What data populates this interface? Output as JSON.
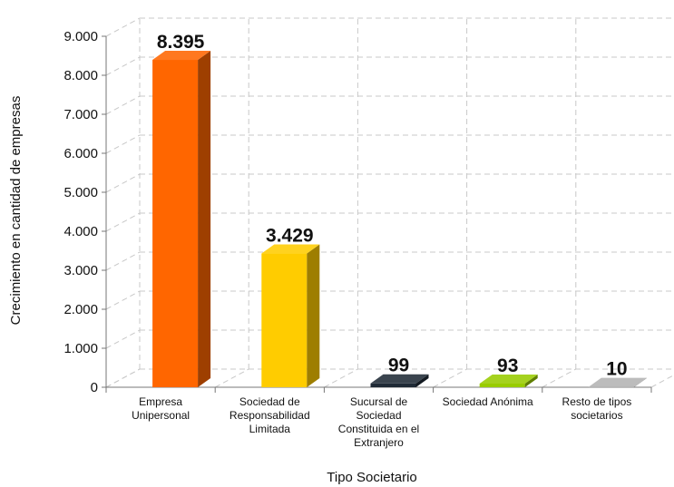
{
  "chart_data": {
    "type": "bar",
    "style": "3d",
    "categories": [
      [
        "Empresa",
        "Unipersonal"
      ],
      [
        "Sociedad de",
        "Responsabilidad",
        "Limitada"
      ],
      [
        "Sucursal de",
        "Sociedad",
        "Constituida en el",
        "Extranjero"
      ],
      [
        "Sociedad Anónima"
      ],
      [
        "Resto de tipos",
        "societarios"
      ]
    ],
    "values": [
      8395,
      3429,
      99,
      93,
      10
    ],
    "value_labels": [
      "8.395",
      "3.429",
      "99",
      "93",
      "10"
    ],
    "colors": [
      "#ff6600",
      "#ffcc00",
      "#1f2a36",
      "#99cc00",
      "#b3b3b3"
    ],
    "xlabel": "Tipo Societario",
    "ylabel": "Crecimiento en cantidad de empresas",
    "ylim": [
      0,
      9000
    ],
    "yticks": [
      "0",
      "1.000",
      "2.000",
      "3.000",
      "4.000",
      "5.000",
      "6.000",
      "7.000",
      "8.000",
      "9.000"
    ],
    "grid": true
  }
}
